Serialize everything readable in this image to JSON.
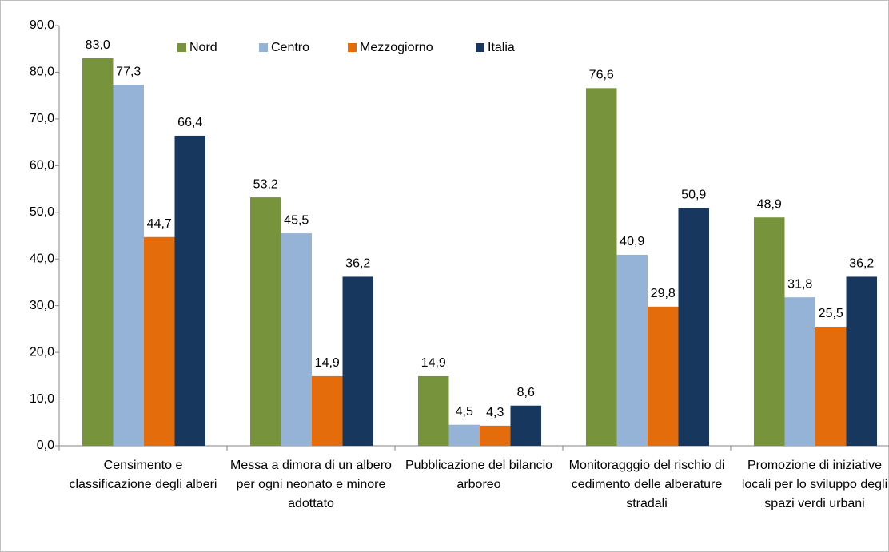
{
  "chart_data": {
    "type": "bar",
    "categories": [
      "Censimento e classificazione degli alberi",
      "Messa a dimora di un albero per ogni neonato e minore adottato",
      "Pubblicazione del bilancio arboreo",
      "Monitoragggio del rischio di cedimento delle alberature stradali",
      "Promozione di iniziative locali per lo sviluppo degli spazi verdi urbani"
    ],
    "series": [
      {
        "name": "Nord",
        "color": "#77933c",
        "values": [
          83.0,
          53.2,
          14.9,
          76.6,
          48.9
        ],
        "value_labels": [
          "83,0",
          "53,2",
          "14,9",
          "76,6",
          "48,9"
        ]
      },
      {
        "name": "Centro",
        "color": "#95b3d7",
        "values": [
          77.3,
          45.5,
          4.5,
          40.9,
          31.8
        ],
        "value_labels": [
          "77,3",
          "45,5",
          "4,5",
          "40,9",
          "31,8"
        ]
      },
      {
        "name": "Mezzogiorno",
        "color": "#e46c0a",
        "values": [
          44.7,
          14.9,
          4.3,
          29.8,
          25.5
        ],
        "value_labels": [
          "44,7",
          "14,9",
          "4,3",
          "29,8",
          "25,5"
        ]
      },
      {
        "name": "Italia",
        "color": "#17375e",
        "values": [
          66.4,
          36.2,
          8.6,
          50.9,
          36.2
        ],
        "value_labels": [
          "66,4",
          "36,2",
          "8,6",
          "50,9",
          "36,2"
        ]
      }
    ],
    "ylim": [
      0,
      90
    ],
    "yticks": [
      {
        "value": 0,
        "label": "0,0"
      },
      {
        "value": 10,
        "label": "10,0"
      },
      {
        "value": 20,
        "label": "20,0"
      },
      {
        "value": 30,
        "label": "30,0"
      },
      {
        "value": 40,
        "label": "40,0"
      },
      {
        "value": 50,
        "label": "50,0"
      },
      {
        "value": 60,
        "label": "60,0"
      },
      {
        "value": 70,
        "label": "70,0"
      },
      {
        "value": 80,
        "label": "80,0"
      },
      {
        "value": 90,
        "label": "90,0"
      }
    ],
    "grid": false,
    "legend": "top"
  }
}
